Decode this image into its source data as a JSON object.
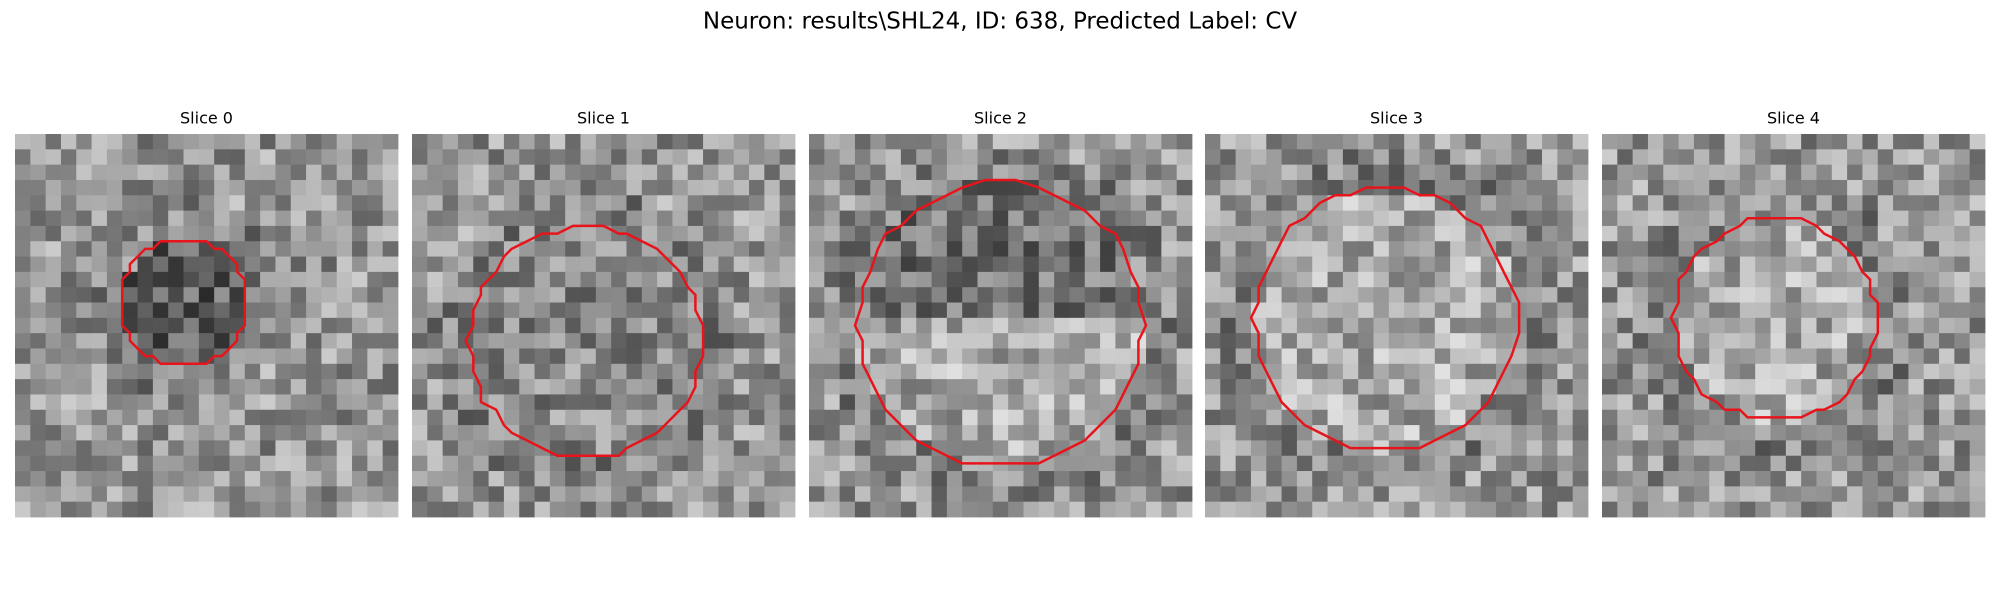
{
  "header": {
    "title": "Neuron: results\\SHL24, ID: 638, Predicted Label: CV"
  },
  "panels": [
    {
      "title": "Slice 0"
    },
    {
      "title": "Slice 1"
    },
    {
      "title": "Slice 2"
    },
    {
      "title": "Slice 3"
    },
    {
      "title": "Slice 4"
    }
  ]
}
